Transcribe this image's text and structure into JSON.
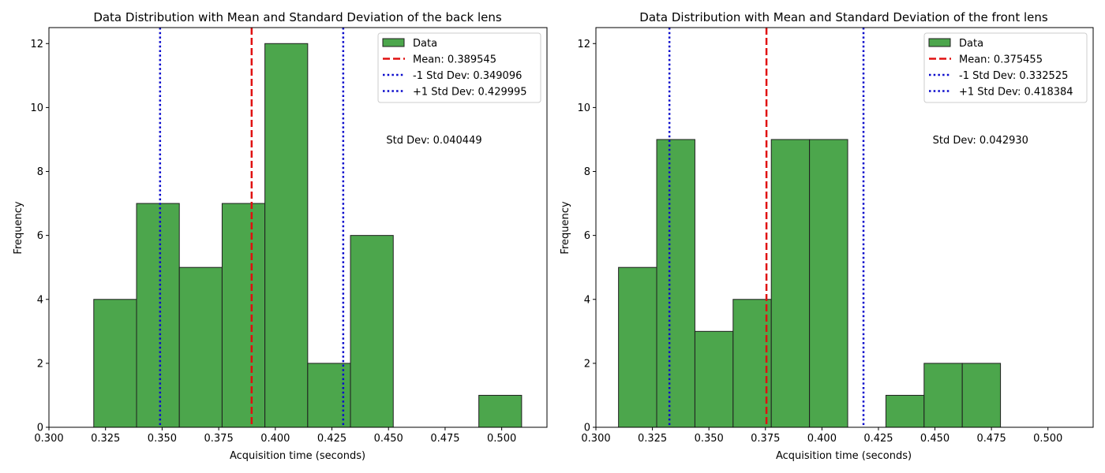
{
  "chart_data": [
    {
      "type": "bar",
      "title": "Data Distribution with Mean and Standard Deviation of the back lens",
      "xlabel": "Acquisition time (seconds)",
      "ylabel": "Frequency",
      "xlim": [
        0.3,
        0.52
      ],
      "ylim": [
        0,
        12.5
      ],
      "xticks": [
        "0.300",
        "0.325",
        "0.350",
        "0.375",
        "0.400",
        "0.425",
        "0.450",
        "0.475",
        "0.500"
      ],
      "xtick_values": [
        0.3,
        0.325,
        0.35,
        0.375,
        0.4,
        0.425,
        0.45,
        0.475,
        0.5
      ],
      "yticks": [
        "0",
        "2",
        "4",
        "6",
        "8",
        "10",
        "12"
      ],
      "ytick_values": [
        0,
        2,
        4,
        6,
        8,
        10,
        12
      ],
      "bin_edges": [
        0.3198,
        0.3387,
        0.3576,
        0.3765,
        0.3954,
        0.4143,
        0.4332,
        0.4521,
        0.471,
        0.4899,
        0.5088
      ],
      "values": [
        4,
        7,
        5,
        7,
        12,
        2,
        6,
        0,
        0,
        1
      ],
      "mean": 0.389545,
      "std_lower": 0.349096,
      "std_upper": 0.429995,
      "legend": {
        "position": "upper right",
        "items": [
          {
            "label": "Data",
            "kind": "patch"
          },
          {
            "label": "Mean: 0.389545",
            "kind": "mean"
          },
          {
            "label": "-1 Std Dev: 0.349096",
            "kind": "std"
          },
          {
            "label": "+1 Std Dev: 0.429995",
            "kind": "std"
          }
        ]
      },
      "annotation": "Std Dev: 0.040449",
      "annotation_at": [
        0.449,
        9.0
      ]
    },
    {
      "type": "bar",
      "title": "Data Distribution with Mean and Standard Deviation of the front lens",
      "xlabel": "Acquisition time (seconds)",
      "ylabel": "Frequency",
      "xlim": [
        0.3,
        0.52
      ],
      "ylim": [
        0,
        12.5
      ],
      "xticks": [
        "0.300",
        "0.325",
        "0.350",
        "0.375",
        "0.400",
        "0.425",
        "0.450",
        "0.475",
        "0.500"
      ],
      "xtick_values": [
        0.3,
        0.325,
        0.35,
        0.375,
        0.4,
        0.425,
        0.45,
        0.475,
        0.5
      ],
      "yticks": [
        "0",
        "2",
        "4",
        "6",
        "8",
        "10",
        "12"
      ],
      "ytick_values": [
        0,
        2,
        4,
        6,
        8,
        10,
        12
      ],
      "bin_edges": [
        0.31,
        0.3269,
        0.3438,
        0.3607,
        0.3776,
        0.3945,
        0.4114,
        0.4283,
        0.4452,
        0.4621,
        0.479
      ],
      "values": [
        5,
        9,
        3,
        4,
        9,
        9,
        0,
        1,
        2,
        2
      ],
      "mean": 0.375455,
      "std_lower": 0.332525,
      "std_upper": 0.418384,
      "legend": {
        "position": "upper right",
        "items": [
          {
            "label": "Data",
            "kind": "patch"
          },
          {
            "label": "Mean: 0.375455",
            "kind": "mean"
          },
          {
            "label": "-1 Std Dev: 0.332525",
            "kind": "std"
          },
          {
            "label": "+1 Std Dev: 0.418384",
            "kind": "std"
          }
        ]
      },
      "annotation": "Std Dev: 0.042930",
      "annotation_at": [
        0.449,
        9.0
      ]
    }
  ],
  "colors": {
    "bar_fill": "#4ca64c",
    "bar_edge": "#1f1f1f",
    "mean_line": "#e01010",
    "std_line": "#0a0acc",
    "axis": "#000000",
    "legend_edge": "#cccccc"
  }
}
